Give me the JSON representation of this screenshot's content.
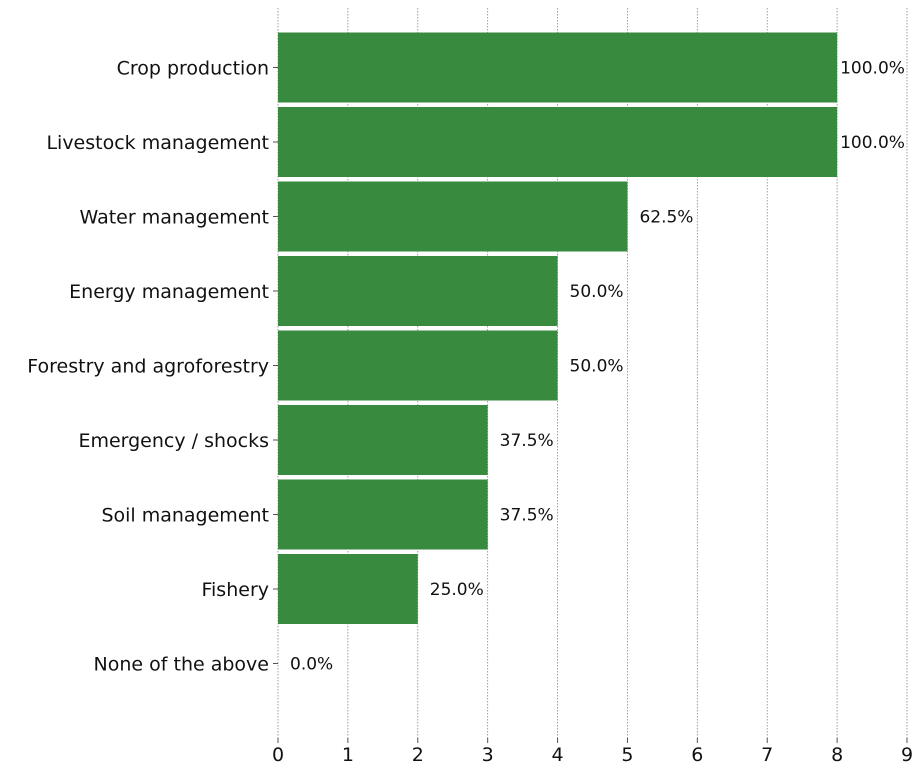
{
  "chart_data": {
    "type": "bar",
    "orientation": "horizontal",
    "categories": [
      "Crop production",
      "Livestock management",
      "Water management",
      "Energy management",
      "Forestry and agroforestry",
      "Emergency /  shocks",
      "Soil management",
      "Fishery",
      "None of the above"
    ],
    "values": [
      8,
      8,
      5,
      4,
      4,
      3,
      3,
      2,
      0
    ],
    "data_labels": [
      "100.0%",
      "100.0%",
      "62.5%",
      "50.0%",
      "50.0%",
      "37.5%",
      "37.5%",
      "25.0%",
      "0.0%"
    ],
    "x_ticks": [
      "0",
      "1",
      "2",
      "3",
      "4",
      "5",
      "6",
      "7",
      "8",
      "9"
    ],
    "xlim": [
      0,
      9
    ],
    "title": "",
    "xlabel": "",
    "ylabel": "",
    "grid": "vertical dotted",
    "bar_color": "#388a3f"
  }
}
